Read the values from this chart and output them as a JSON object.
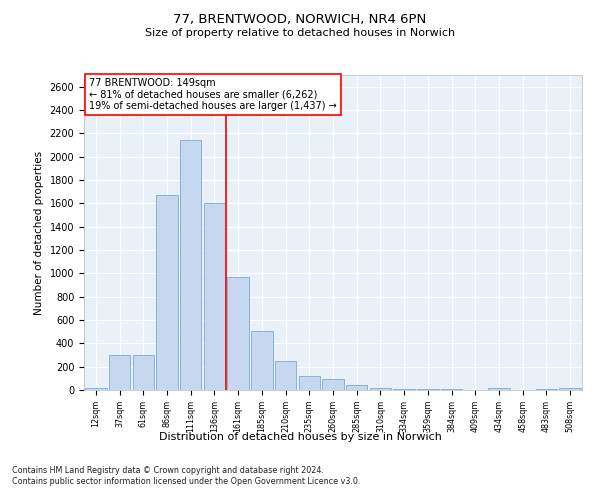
{
  "title_line1": "77, BRENTWOOD, NORWICH, NR4 6PN",
  "title_line2": "Size of property relative to detached houses in Norwich",
  "xlabel": "Distribution of detached houses by size in Norwich",
  "ylabel": "Number of detached properties",
  "categories": [
    "12sqm",
    "37sqm",
    "61sqm",
    "86sqm",
    "111sqm",
    "136sqm",
    "161sqm",
    "185sqm",
    "210sqm",
    "235sqm",
    "260sqm",
    "285sqm",
    "310sqm",
    "334sqm",
    "359sqm",
    "384sqm",
    "409sqm",
    "434sqm",
    "458sqm",
    "483sqm",
    "508sqm"
  ],
  "values": [
    20,
    300,
    300,
    1670,
    2140,
    1600,
    970,
    505,
    245,
    120,
    95,
    40,
    20,
    10,
    5,
    5,
    2,
    15,
    2,
    5,
    20
  ],
  "bar_color": "#c5d8f0",
  "bar_edge_color": "#7aadd4",
  "property_line_x": 5.5,
  "annotation_text": "77 BRENTWOOD: 149sqm\n← 81% of detached houses are smaller (6,262)\n19% of semi-detached houses are larger (1,437) →",
  "ylim": [
    0,
    2700
  ],
  "yticks": [
    0,
    200,
    400,
    600,
    800,
    1000,
    1200,
    1400,
    1600,
    1800,
    2000,
    2200,
    2400,
    2600
  ],
  "footer_line1": "Contains HM Land Registry data © Crown copyright and database right 2024.",
  "footer_line2": "Contains public sector information licensed under the Open Government Licence v3.0.",
  "plot_bg_color": "#e8f0f8"
}
